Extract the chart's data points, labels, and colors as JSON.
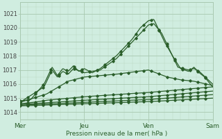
{
  "bg_color": "#d0ede0",
  "grid_color_major": "#a8c8b0",
  "grid_color_minor": "#bcdac4",
  "line_color": "#2a5e2a",
  "ylim": [
    1013.5,
    1021.8
  ],
  "yticks": [
    1014,
    1015,
    1016,
    1017,
    1018,
    1019,
    1020,
    1021
  ],
  "day_labels": [
    "Mer",
    "Jeu",
    "Ven",
    "Sam"
  ],
  "day_positions": [
    0,
    48,
    96,
    144
  ],
  "xlabel": "Pression niveau de la mer( hPa )",
  "line_width": 0.9,
  "marker_size": 1.8
}
